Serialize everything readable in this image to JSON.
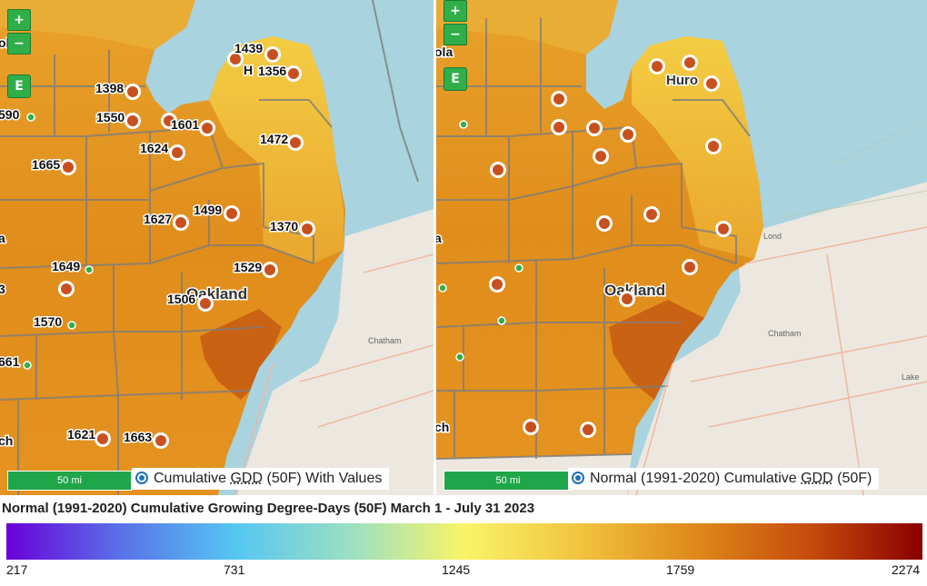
{
  "left_panel": {
    "zoom_in": "+",
    "zoom_out": "−",
    "e_button": "E",
    "scale": "50 mi",
    "layer_label_pre": "Cumulative ",
    "layer_label_gdd": "GDD",
    "layer_label_post": " (50F) With Values",
    "place_label": "Oakland",
    "station_values": [
      "1439",
      "1356",
      "1398",
      "1550",
      "1601",
      "1472",
      "1624",
      "1665",
      "1499",
      "1627",
      "1370",
      "1649",
      "1529",
      "1506",
      "1570",
      "1621",
      "1663"
    ],
    "edge_values": [
      "590",
      "661"
    ],
    "edge_fragments": [
      "ola",
      "a",
      "3",
      "ch"
    ],
    "huron_partial": "H"
  },
  "right_panel": {
    "zoom_in": "+",
    "zoom_out": "−",
    "e_button": "E",
    "scale": "50 mi",
    "layer_label_pre": "Normal (1991-2020) Cumulative ",
    "layer_label_gdd": "GDD",
    "layer_label_post": " (50F)",
    "place_label": "Oakland",
    "huron_label": "Huro",
    "edge_fragments": [
      "ola",
      "a",
      "ch"
    ],
    "small_places": [
      "Chatham",
      "Lond",
      "Lake"
    ]
  },
  "legend": {
    "title": "Normal (1991-2020) Cumulative Growing Degree-Days (50F) March 1 - July 31 2023",
    "ticks": [
      "217",
      "731",
      "1245",
      "1759",
      "2274"
    ],
    "colors": [
      "#6a00d8",
      "#55c6f2",
      "#f8f468",
      "#df8a1a",
      "#8a0000"
    ]
  },
  "colors": {
    "water": "#a9d3df",
    "button": "#2fae4a",
    "marker": "#c8501e"
  }
}
